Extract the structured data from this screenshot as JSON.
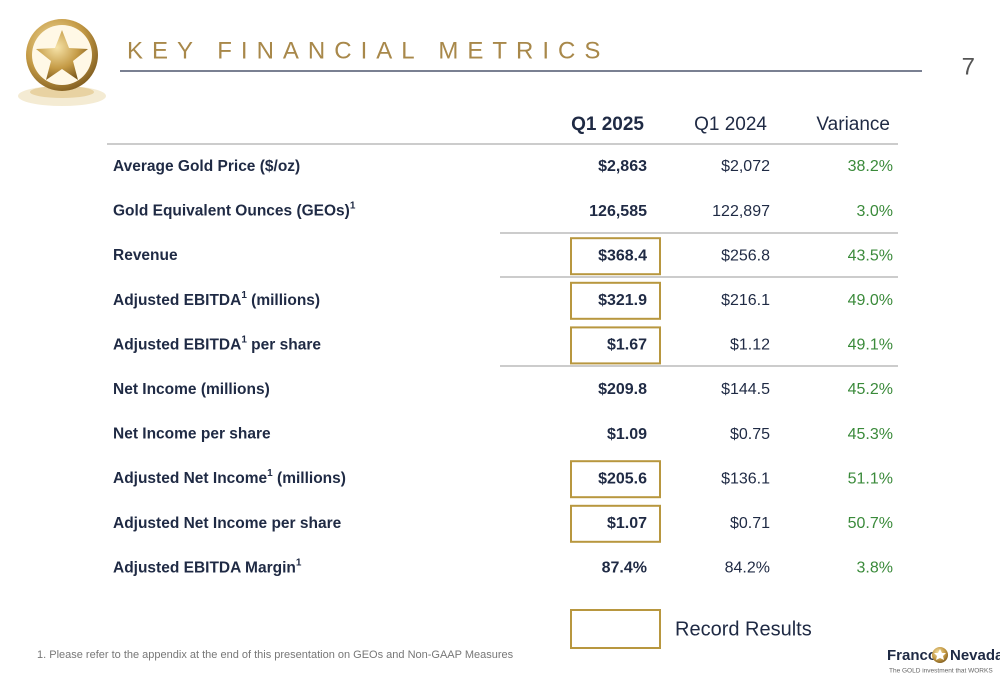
{
  "header": {
    "title": "KEY FINANCIAL METRICS",
    "page_number": "7"
  },
  "table": {
    "columns": [
      "Q1 2025",
      "Q1 2024",
      "Variance"
    ],
    "rows": [
      {
        "label": [
          "Average Gold Price ($/oz)"
        ],
        "cells": [
          "$2,863",
          "$2,072",
          "38.2%"
        ],
        "record": false
      },
      {
        "label": [
          "Gold Equivalent Ounces (GEOs)",
          "1"
        ],
        "cells": [
          "126,585",
          "122,897",
          "3.0%"
        ],
        "record": false
      },
      {
        "label": [
          "Revenue"
        ],
        "cells": [
          "$368.4",
          "$256.8",
          "43.5%"
        ],
        "record": true
      },
      {
        "label": [
          "Adjusted EBITDA",
          "1",
          " (millions)"
        ],
        "cells": [
          "$321.9",
          "$216.1",
          "49.0%"
        ],
        "record": true
      },
      {
        "label": [
          "Adjusted EBITDA",
          "1",
          " per share"
        ],
        "cells": [
          "$1.67",
          "$1.12",
          "49.1%"
        ],
        "record": true
      },
      {
        "label": [
          "Net Income (millions)"
        ],
        "cells": [
          "$209.8",
          "$144.5",
          "45.2%"
        ],
        "record": false
      },
      {
        "label": [
          "Net Income per share"
        ],
        "cells": [
          "$1.09",
          "$0.75",
          "45.3%"
        ],
        "record": false
      },
      {
        "label": [
          "Adjusted Net Income",
          "1",
          " (millions)"
        ],
        "cells": [
          "$205.6",
          "$136.1",
          "51.1%"
        ],
        "record": true
      },
      {
        "label": [
          "Adjusted Net Income per share"
        ],
        "cells": [
          "$1.07",
          "$0.71",
          "50.7%"
        ],
        "record": true
      },
      {
        "label": [
          "Adjusted EBITDA Margin",
          "1"
        ],
        "cells": [
          "87.4%",
          "84.2%",
          "3.8%"
        ],
        "record": false
      }
    ]
  },
  "legend": {
    "label": "Record Results"
  },
  "footnote": "1. Please refer to the appendix at the end of this presentation on GEOs and Non-GAAP Measures",
  "logo": {
    "name": [
      "Franco",
      "Nevada"
    ],
    "tagline": "The GOLD investment that WORKS"
  }
}
